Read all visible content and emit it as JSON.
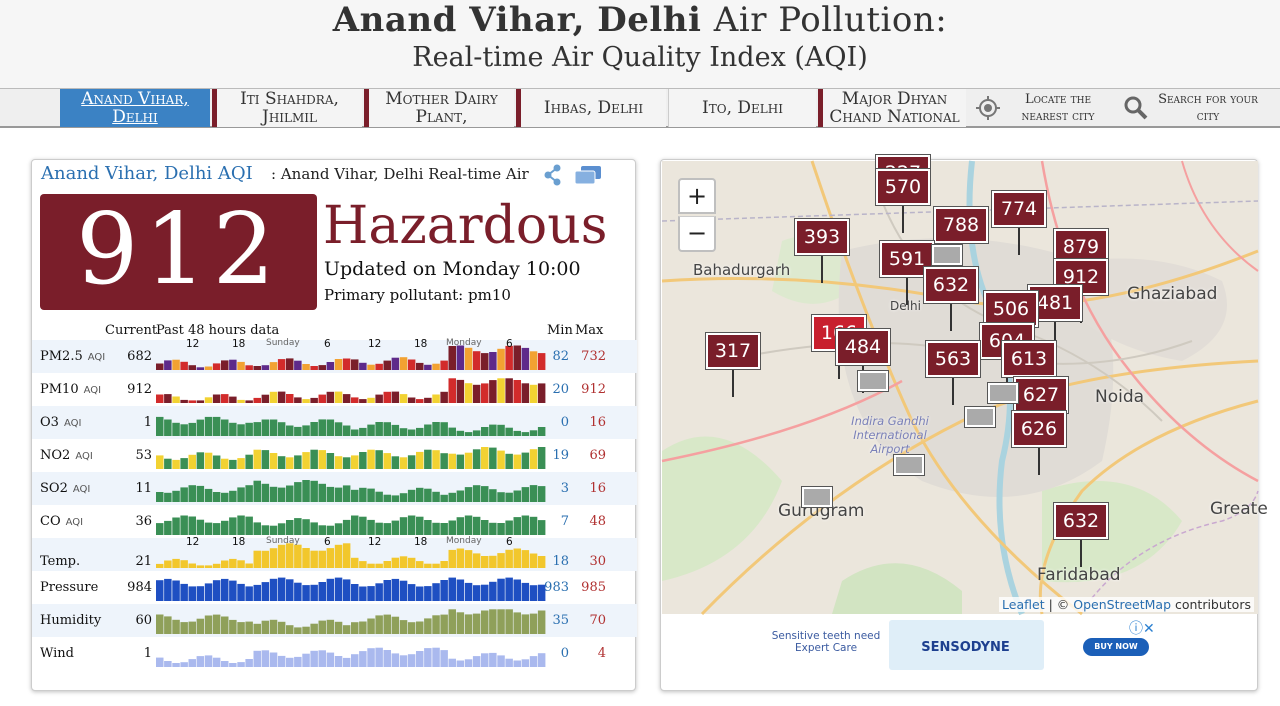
{
  "header": {
    "title_bold": "Anand Vihar, Delhi",
    "title_light": "Air Pollution:",
    "subtitle": "Real-time Air Quality Index (AQI)"
  },
  "tabs": [
    {
      "label": "Anand Vihar, Delhi",
      "active": true
    },
    {
      "label": "Iti Shahdra, Jhilmil"
    },
    {
      "label": "Mother Dairy Plant,"
    },
    {
      "label": "Ihbas, Delhi"
    },
    {
      "label": "Ito, Delhi"
    },
    {
      "label": "Major Dhyan Chand National"
    }
  ],
  "tool_tabs": {
    "locate": "Locate the nearest city",
    "search": "Search for your city"
  },
  "card": {
    "title": "Anand Vihar, Delhi AQI",
    "subtitle": ": Anand Vihar, Delhi Real-time Air",
    "aqi": "912",
    "status": "Hazardous",
    "updated": "Updated on Monday 10:00",
    "primary": "Primary pollutant: pm10",
    "headers": {
      "current": "Current",
      "past": "Past 48 hours data",
      "min": "Min",
      "max": "Max"
    },
    "time_axis": [
      "12",
      "18",
      "Sunday",
      "6",
      "12",
      "18",
      "Monday",
      "6"
    ],
    "rows": [
      {
        "name": "PM2.5",
        "unit": "AQI",
        "current": "682",
        "min": "82",
        "max": "732"
      },
      {
        "name": "PM10",
        "unit": "AQI",
        "current": "912",
        "min": "20",
        "max": "912"
      },
      {
        "name": "O3",
        "unit": "AQI",
        "current": "1",
        "min": "0",
        "max": "16"
      },
      {
        "name": "NO2",
        "unit": "AQI",
        "current": "53",
        "min": "19",
        "max": "69"
      },
      {
        "name": "SO2",
        "unit": "AQI",
        "current": "11",
        "min": "3",
        "max": "16"
      },
      {
        "name": "CO",
        "unit": "AQI",
        "current": "36",
        "min": "7",
        "max": "48"
      },
      {
        "name": "Temp.",
        "unit": "",
        "current": "21",
        "min": "18",
        "max": "30"
      },
      {
        "name": "Pressure",
        "unit": "",
        "current": "984",
        "min": "983",
        "max": "985"
      },
      {
        "name": "Humidity",
        "unit": "",
        "current": "60",
        "min": "35",
        "max": "70"
      },
      {
        "name": "Wind",
        "unit": "",
        "current": "1",
        "min": "0",
        "max": "4"
      }
    ],
    "colors": {
      "hazardous": "#7a1e2a",
      "link": "#2a6fb0",
      "good": "#3a8f55",
      "moderate": "#f2d232",
      "unhealthy": "#d22b2b",
      "very_unhealthy": "#5e2a8a"
    }
  },
  "map": {
    "zoom_in": "+",
    "zoom_out": "−",
    "cities": [
      "Bahadurgarh",
      "Delhi",
      "Ghaziabad",
      "Noida",
      "Indira Gandhi International Airport",
      "Gurugram",
      "Faridabad",
      "Greate"
    ],
    "markers": [
      "227",
      "570",
      "788",
      "774",
      "393",
      "591",
      "879",
      "632",
      "912",
      "481",
      "506",
      "166",
      "484",
      "604",
      "317",
      "563",
      "613",
      "627",
      "626",
      "632"
    ],
    "attribution_link": "Leaflet",
    "attribution_sep": " | © ",
    "attribution_osm": "OpenStreetMap",
    "attribution_tail": " contributors"
  },
  "ad": {
    "text": "Sensitive teeth need Expert Care",
    "brand": "SENSODYNE",
    "button": "BUY NOW",
    "info": "ⓘ✕"
  }
}
